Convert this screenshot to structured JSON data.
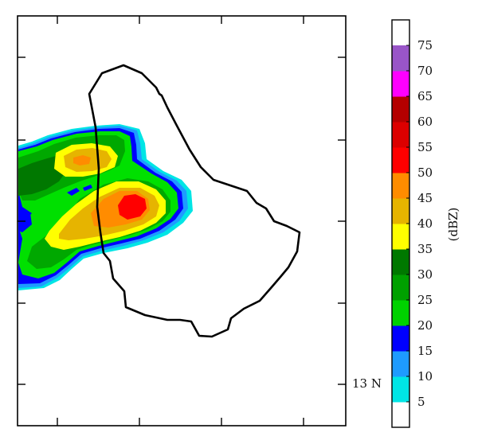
{
  "map": {
    "lat_label": "13 N",
    "coastline": "black outline of island",
    "echo_cells": "radar reflectivity contours"
  },
  "colorbar": {
    "unit": "(dBZ)",
    "levels": [
      {
        "value": "5",
        "color": "#ffffff"
      },
      {
        "value": "10",
        "color": "#00e5e5"
      },
      {
        "value": "15",
        "color": "#1e9bff"
      },
      {
        "value": "20",
        "color": "#0000ff"
      },
      {
        "value": "25",
        "color": "#00d200"
      },
      {
        "value": "30",
        "color": "#00a000"
      },
      {
        "value": "35",
        "color": "#007800"
      },
      {
        "value": "40",
        "color": "#ffff00"
      },
      {
        "value": "45",
        "color": "#e6b400"
      },
      {
        "value": "50",
        "color": "#ff8c00"
      },
      {
        "value": "55",
        "color": "#ff0000"
      },
      {
        "value": "60",
        "color": "#dc0000"
      },
      {
        "value": "65",
        "color": "#b40000"
      },
      {
        "value": "70",
        "color": "#ff00ff"
      },
      {
        "value": "75",
        "color": "#9955c8"
      }
    ],
    "top_color": "#ffffff"
  }
}
